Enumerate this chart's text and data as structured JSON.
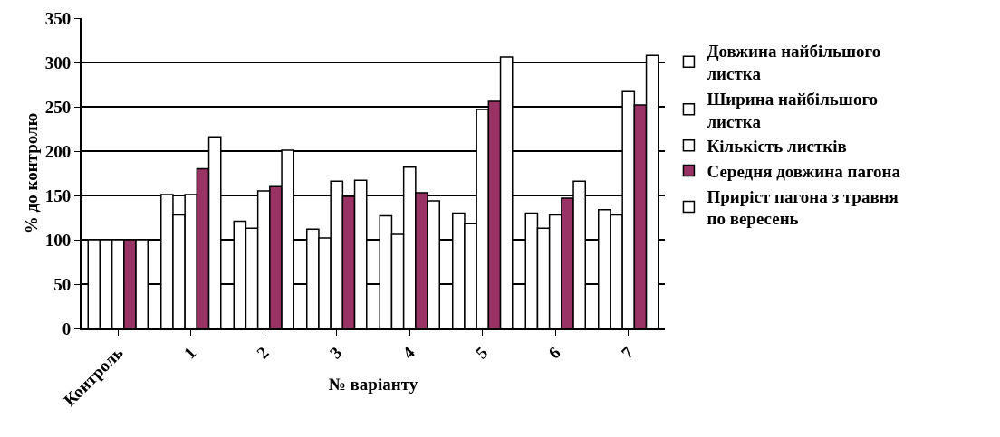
{
  "chart_data": {
    "type": "bar",
    "xlabel": "№ варіанту",
    "ylabel": "% до контролю",
    "categories": [
      "Контроль",
      "1",
      "2",
      "3",
      "4",
      "5",
      "6",
      "7"
    ],
    "series": [
      {
        "name": "Довжина найбільшого листка",
        "color": "#ffffff",
        "values": [
          100,
          151,
          121,
          112,
          127,
          130,
          130,
          134
        ]
      },
      {
        "name": "Ширина найбільшого листка",
        "color": "#ffffff",
        "values": [
          100,
          128,
          113,
          102,
          106,
          118,
          113,
          128
        ]
      },
      {
        "name": "Кількість листків",
        "color": "#ffffff",
        "values": [
          100,
          151,
          155,
          166,
          182,
          247,
          128,
          267
        ]
      },
      {
        "name": "Середня довжина пагона",
        "color": "#993366",
        "values": [
          100,
          180,
          160,
          149,
          153,
          256,
          147,
          252
        ]
      },
      {
        "name": "Приріст пагона з травня по вересень",
        "color": "#ffffff",
        "values": [
          100,
          216,
          201,
          167,
          144,
          306,
          166,
          308
        ]
      }
    ],
    "ylim": [
      0,
      350
    ],
    "yticks": [
      0,
      50,
      100,
      150,
      200,
      250,
      300,
      350
    ],
    "grid": "y",
    "legend": "right"
  }
}
